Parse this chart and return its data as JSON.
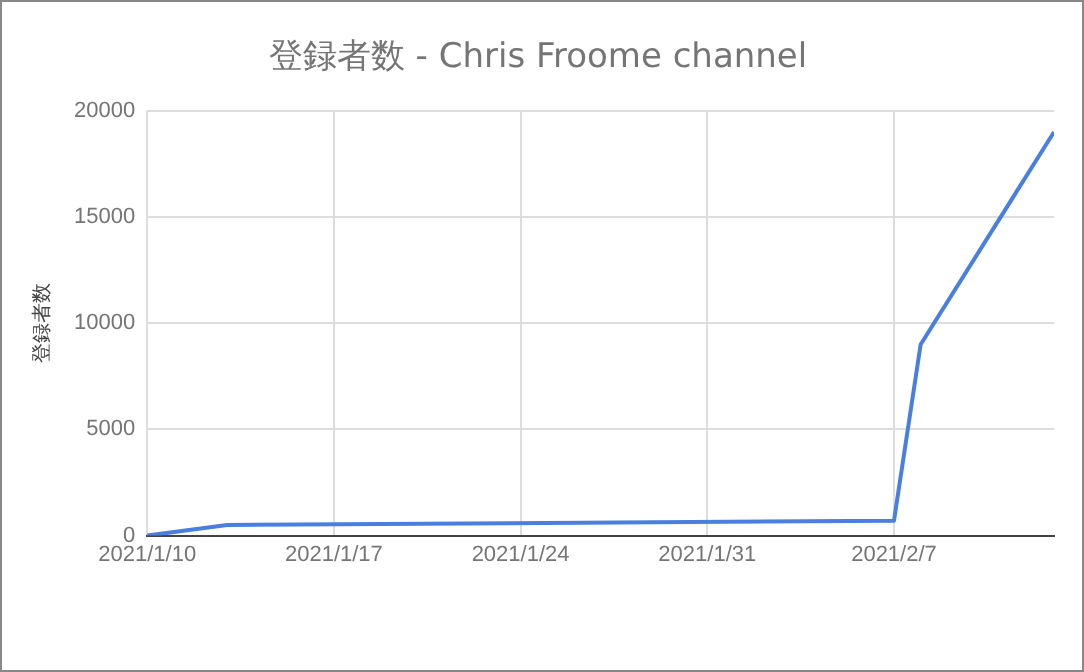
{
  "chart_data": {
    "type": "line",
    "title": "登録者数 - Chris Froome channel",
    "ylabel": "登録者数",
    "x": [
      "2021-01-10",
      "2021-01-13",
      "2021-02-07",
      "2021-02-08",
      "2021-02-13"
    ],
    "series": [
      {
        "color": "#4a7fe0",
        "values": [
          0,
          500,
          700,
          9000,
          19000
        ]
      }
    ],
    "xlim": [
      "2021-01-10",
      "2021-02-13"
    ],
    "xticks": [
      {
        "value": "2021-01-10",
        "label": "2021/1/10"
      },
      {
        "value": "2021-01-17",
        "label": "2021/1/17"
      },
      {
        "value": "2021-01-24",
        "label": "2021/1/24"
      },
      {
        "value": "2021-01-31",
        "label": "2021/1/31"
      },
      {
        "value": "2021-02-07",
        "label": "2021/2/7"
      }
    ],
    "ylim": [
      0,
      20000
    ],
    "yticks": [
      0,
      5000,
      10000,
      15000,
      20000
    ],
    "grid": true,
    "legend": false,
    "marker": "none",
    "line_style": "solid"
  }
}
